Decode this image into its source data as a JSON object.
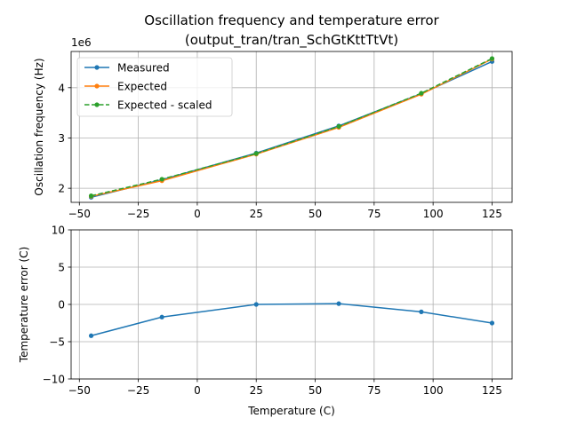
{
  "chart_data": [
    {
      "type": "line",
      "title": "Oscillation frequency and temperature error",
      "subtitle": "(output_tran/tran_SchGtKttTtVt)",
      "xlabel": "",
      "ylabel": "Oscillation frequency (Hz)",
      "offset_label": "1e6",
      "x": [
        -45,
        -15,
        25,
        60,
        95,
        125
      ],
      "xlim": [
        -53.5,
        133.5
      ],
      "ylim": [
        1.72,
        4.72
      ],
      "xticks": [
        -50,
        -25,
        0,
        25,
        50,
        75,
        100,
        125
      ],
      "xtick_labels": [
        "−50",
        "−25",
        "0",
        "25",
        "50",
        "75",
        "100",
        "125"
      ],
      "yticks": [
        2,
        3,
        4
      ],
      "ytick_labels": [
        "2",
        "3",
        "4"
      ],
      "grid": true,
      "legend_position": "top-left",
      "series": [
        {
          "name": "Measured",
          "color": "#1f77b4",
          "style": "solid",
          "values": [
            1.82,
            2.17,
            2.7,
            3.24,
            3.88,
            4.52
          ]
        },
        {
          "name": "Expected",
          "color": "#ff7f0e",
          "style": "solid",
          "values": [
            1.84,
            2.15,
            2.68,
            3.21,
            3.87,
            4.57
          ]
        },
        {
          "name": "Expected - scaled",
          "color": "#2ca02c",
          "style": "dashed",
          "values": [
            1.85,
            2.18,
            2.69,
            3.23,
            3.89,
            4.58
          ]
        }
      ]
    },
    {
      "type": "line",
      "title": "",
      "xlabel": "Temperature (C)",
      "ylabel": "Temperature error (C)",
      "x": [
        -45,
        -15,
        25,
        60,
        95,
        125
      ],
      "xlim": [
        -53.5,
        133.5
      ],
      "ylim": [
        -10,
        10
      ],
      "xticks": [
        -50,
        -25,
        0,
        25,
        50,
        75,
        100,
        125
      ],
      "xtick_labels": [
        "−50",
        "−25",
        "0",
        "25",
        "50",
        "75",
        "100",
        "125"
      ],
      "yticks": [
        -10,
        -5,
        0,
        5,
        10
      ],
      "ytick_labels": [
        "−10",
        "−5",
        "0",
        "5",
        "10"
      ],
      "grid": true,
      "series": [
        {
          "name": "Temperature error",
          "color": "#1f77b4",
          "style": "solid",
          "values": [
            -4.2,
            -1.7,
            0.0,
            0.1,
            -1.0,
            -2.5
          ]
        }
      ]
    }
  ]
}
